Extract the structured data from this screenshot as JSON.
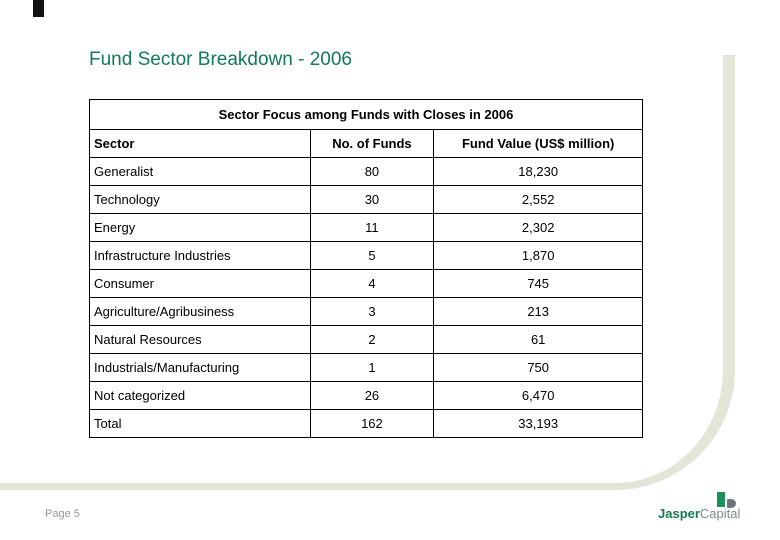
{
  "slide": {
    "title": "Fund Sector Breakdown - 2006",
    "page_label": "Page 5"
  },
  "table": {
    "caption": "Sector Focus among Funds with Closes in 2006",
    "columns": [
      "Sector",
      "No. of Funds",
      "Fund Value (US$ million)"
    ],
    "rows": [
      {
        "sector": "Generalist",
        "funds": "80",
        "value": "18,230"
      },
      {
        "sector": "Technology",
        "funds": "30",
        "value": "2,552"
      },
      {
        "sector": "Energy",
        "funds": "11",
        "value": "2,302"
      },
      {
        "sector": "Infrastructure Industries",
        "funds": "5",
        "value": "1,870"
      },
      {
        "sector": "Consumer",
        "funds": "4",
        "value": "745"
      },
      {
        "sector": "Agriculture/Agribusiness",
        "funds": "3",
        "value": "213"
      },
      {
        "sector": "Natural Resources",
        "funds": "2",
        "value": "61"
      },
      {
        "sector": "Industrials/Manufacturing",
        "funds": "1",
        "value": "750"
      },
      {
        "sector": "Not categorized",
        "funds": "26",
        "value": "6,470"
      },
      {
        "sector": "Total",
        "funds": "162",
        "value": "33,193"
      }
    ]
  },
  "logo": {
    "brand_primary": "Jasper",
    "brand_secondary": "Capital"
  },
  "colors": {
    "title_green": "#117A57",
    "swoosh_beige": "#E3E5D6",
    "logo_green": "#1F8F58",
    "logo_gray": "#6E7477",
    "page_label_gray": "#909A9A",
    "table_border": "#000000"
  }
}
